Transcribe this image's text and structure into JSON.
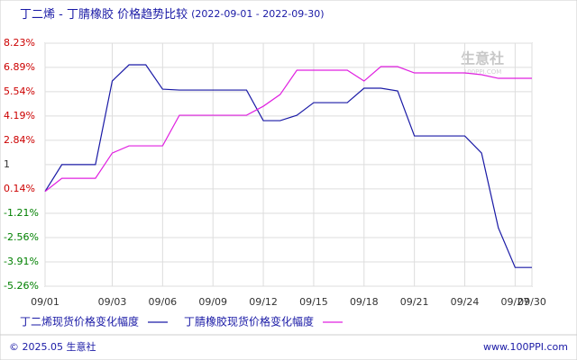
{
  "chart_data": {
    "type": "line",
    "title": "丁二烯 - 丁腈橡胶 价格趋势比较",
    "subtitle": "(2022-09-01 - 2022-09-30)",
    "watermark": "生意社",
    "watermark_sub": "100PPI.COM",
    "categories": [
      "09/01",
      null,
      null,
      null,
      "09/03",
      null,
      null,
      "09/06",
      null,
      null,
      "09/09",
      null,
      null,
      "09/12",
      null,
      null,
      "09/15",
      null,
      null,
      "09/18",
      null,
      null,
      "09/21",
      null,
      null,
      "09/24",
      null,
      null,
      "09/27",
      "09/30"
    ],
    "series": [
      {
        "name": "丁二烯现货价格变化幅度",
        "color": "#1a1aa6",
        "values": [
          0.0,
          1.49,
          1.49,
          1.49,
          6.13,
          7.03,
          7.03,
          5.68,
          5.63,
          5.63,
          5.63,
          5.63,
          5.63,
          3.93,
          3.93,
          4.23,
          4.93,
          4.93,
          4.93,
          5.73,
          5.73,
          5.58,
          3.08,
          3.08,
          3.08,
          3.08,
          2.13,
          -2.02,
          -4.22,
          -4.22
        ]
      },
      {
        "name": "丁腈橡胶现货价格变化幅度",
        "color": "#e020e0",
        "values": [
          0.0,
          0.73,
          0.73,
          0.73,
          2.13,
          2.53,
          2.53,
          2.53,
          4.23,
          4.23,
          4.23,
          4.23,
          4.23,
          4.73,
          5.38,
          6.73,
          6.73,
          6.73,
          6.73,
          6.13,
          6.93,
          6.93,
          6.58,
          6.58,
          6.58,
          6.58,
          6.48,
          6.28,
          6.28,
          6.28
        ]
      }
    ],
    "ylim": [
      -5.26,
      8.23
    ],
    "yticks": [
      {
        "value": 8.23,
        "label": "8.23%"
      },
      {
        "value": 6.89,
        "label": "6.89%"
      },
      {
        "value": 5.54,
        "label": "5.54%"
      },
      {
        "value": 4.19,
        "label": "4.19%"
      },
      {
        "value": 2.84,
        "label": "2.84%"
      },
      {
        "value": 1.49,
        "label": "1"
      },
      {
        "value": 0.14,
        "label": "0.14%"
      },
      {
        "value": -1.21,
        "label": "-1.21%"
      },
      {
        "value": -2.56,
        "label": "-2.56%"
      },
      {
        "value": -3.91,
        "label": "-3.91%"
      },
      {
        "value": -5.26,
        "label": "-5.26%"
      }
    ],
    "grid": true,
    "positive_tick_color": "#cc0000",
    "negative_tick_color": "#008000",
    "footer_left": "© 2025.05 生意社",
    "footer_right": "www.100PPI.com"
  }
}
